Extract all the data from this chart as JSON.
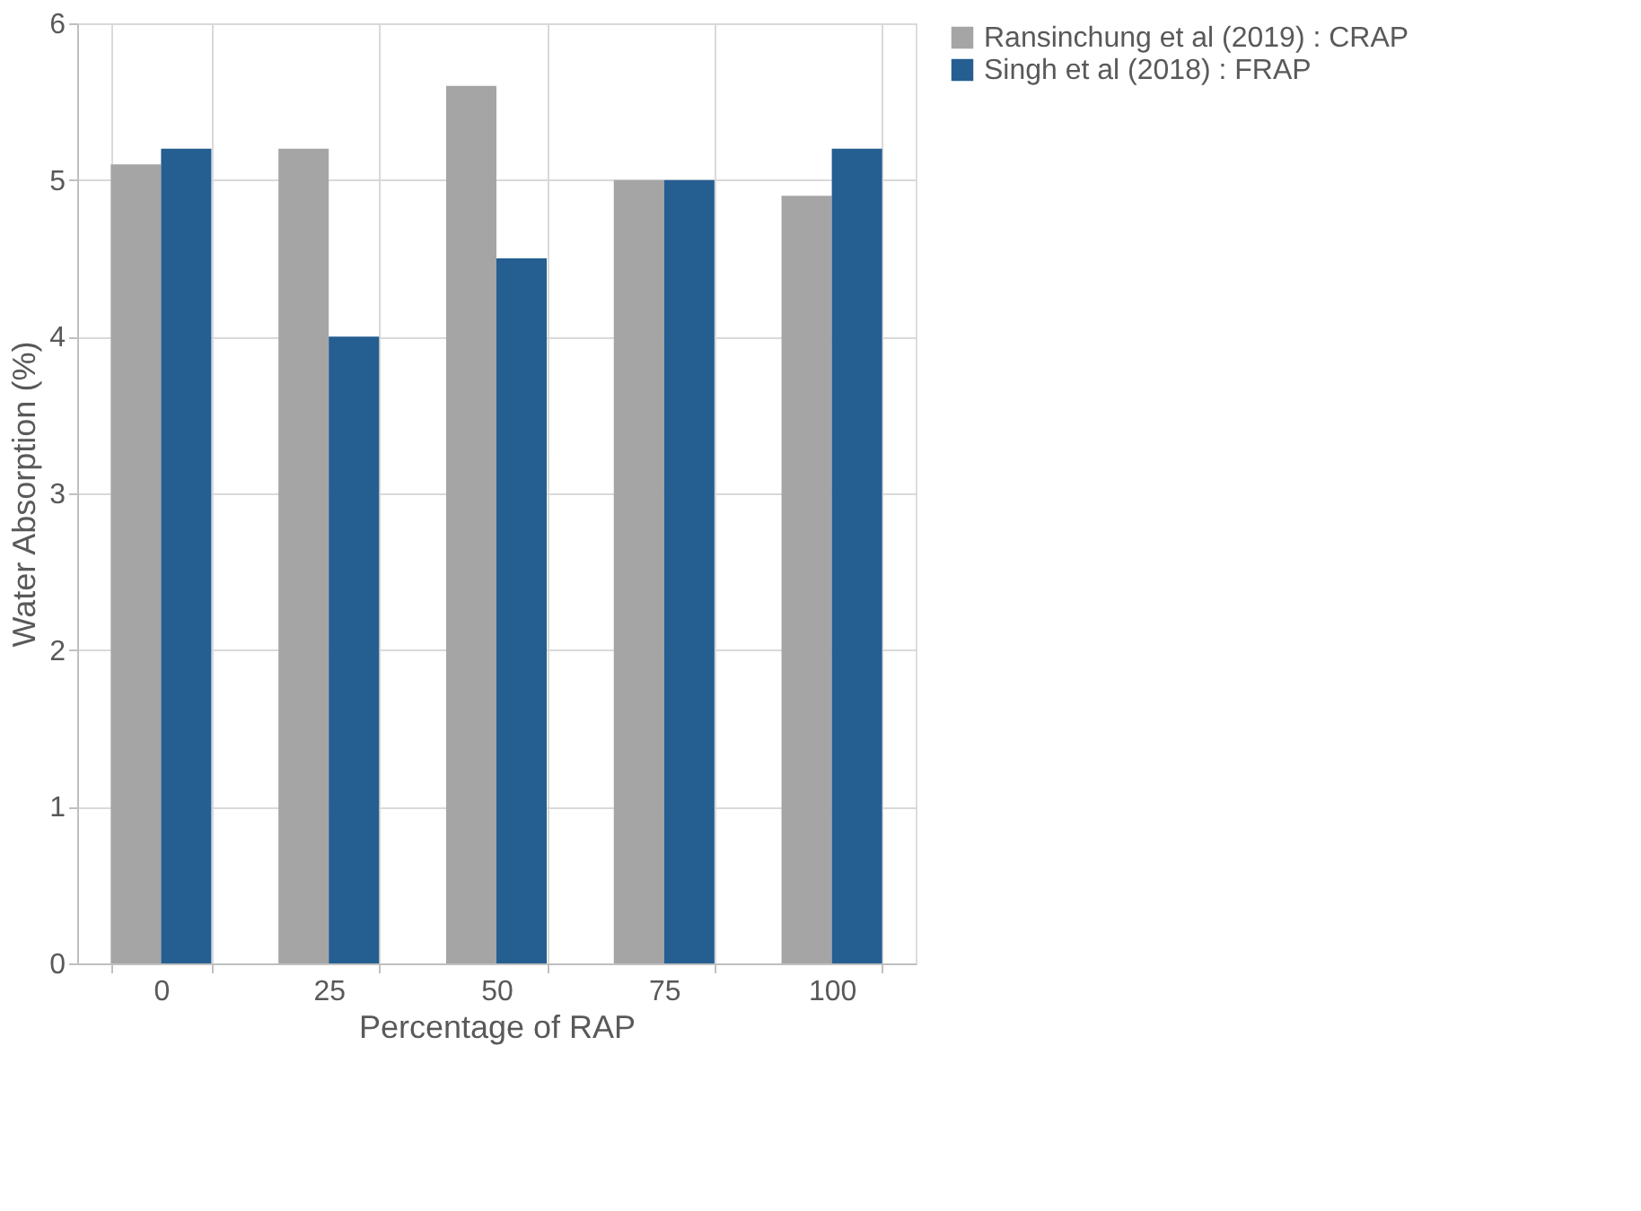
{
  "chart_data": {
    "type": "bar",
    "xlabel": "Percentage of RAP",
    "ylabel": "Water Absorption (%)",
    "categories": [
      "0",
      "25",
      "50",
      "75",
      "100"
    ],
    "series": [
      {
        "name": "Ransinchung et al (2019) : CRAP",
        "color": "#a5a5a5",
        "values": [
          5.1,
          5.2,
          5.6,
          5.0,
          4.9
        ]
      },
      {
        "name": "Singh et al (2018) : FRAP",
        "color": "#255e91",
        "values": [
          5.2,
          4.0,
          4.5,
          5.0,
          5.2
        ]
      }
    ],
    "ylim": [
      0,
      6
    ],
    "yticks": [
      0,
      1,
      2,
      3,
      4,
      5,
      6
    ],
    "grid": true,
    "legend": "right"
  }
}
